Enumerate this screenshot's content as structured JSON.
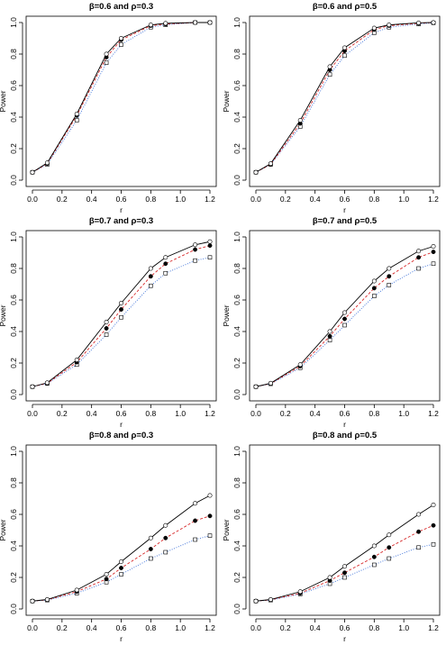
{
  "chart_data": [
    {
      "type": "line",
      "title": "β=0.6 and ρ=0.3",
      "xlabel": "r",
      "ylabel": "Power",
      "xlim": [
        0,
        1.2
      ],
      "ylim": [
        0,
        1.0
      ],
      "xticks": [
        "0.0",
        "0.2",
        "0.4",
        "0.6",
        "0.8",
        "1.0",
        "1.2"
      ],
      "yticks": [
        "0.0",
        "0.2",
        "0.4",
        "0.6",
        "0.8",
        "1.0"
      ],
      "x": [
        0.0,
        0.1,
        0.3,
        0.5,
        0.6,
        0.8,
        0.9,
        1.1,
        1.2
      ],
      "series": [
        {
          "marker": "open-circle",
          "line": "solid",
          "color": "#000000",
          "values": [
            0.05,
            0.11,
            0.42,
            0.8,
            0.9,
            0.985,
            0.995,
            1.0,
            1.0
          ]
        },
        {
          "marker": "filled-circle",
          "line": "dashed",
          "color": "#d62728",
          "values": [
            0.05,
            0.105,
            0.41,
            0.78,
            0.89,
            0.98,
            0.99,
            1.0,
            1.0
          ]
        },
        {
          "marker": "open-square",
          "line": "dotted",
          "color": "#3a6fd8",
          "values": [
            0.05,
            0.1,
            0.38,
            0.745,
            0.86,
            0.97,
            0.985,
            1.0,
            1.0
          ]
        }
      ]
    },
    {
      "type": "line",
      "title": "β=0.6 and ρ=0.5",
      "xlabel": "r",
      "ylabel": "Power",
      "xlim": [
        0,
        1.2
      ],
      "ylim": [
        0,
        1.0
      ],
      "xticks": [
        "0.0",
        "0.2",
        "0.4",
        "0.6",
        "0.8",
        "1.0",
        "1.2"
      ],
      "yticks": [
        "0.0",
        "0.2",
        "0.4",
        "0.6",
        "0.8",
        "1.0"
      ],
      "x": [
        0.0,
        0.1,
        0.3,
        0.5,
        0.6,
        0.8,
        0.9,
        1.1,
        1.2
      ],
      "series": [
        {
          "marker": "open-circle",
          "line": "solid",
          "color": "#000000",
          "values": [
            0.05,
            0.105,
            0.38,
            0.72,
            0.84,
            0.965,
            0.985,
            0.998,
            1.0
          ]
        },
        {
          "marker": "filled-circle",
          "line": "dashed",
          "color": "#d62728",
          "values": [
            0.05,
            0.1,
            0.36,
            0.7,
            0.82,
            0.955,
            0.98,
            0.995,
            1.0
          ]
        },
        {
          "marker": "open-square",
          "line": "dotted",
          "color": "#3a6fd8",
          "values": [
            0.05,
            0.1,
            0.34,
            0.67,
            0.79,
            0.935,
            0.97,
            0.99,
            0.998
          ]
        }
      ]
    },
    {
      "type": "line",
      "title": "β=0.7 and ρ=0.3",
      "xlabel": "r",
      "ylabel": "Power",
      "xlim": [
        0,
        1.2
      ],
      "ylim": [
        0,
        1.0
      ],
      "xticks": [
        "0.0",
        "0.2",
        "0.4",
        "0.6",
        "0.8",
        "1.0",
        "1.2"
      ],
      "yticks": [
        "0.0",
        "0.2",
        "0.4",
        "0.6",
        "0.8",
        "1.0"
      ],
      "x": [
        0.0,
        0.1,
        0.3,
        0.5,
        0.6,
        0.8,
        0.9,
        1.1,
        1.2
      ],
      "series": [
        {
          "marker": "open-circle",
          "line": "solid",
          "color": "#000000",
          "values": [
            0.05,
            0.075,
            0.22,
            0.46,
            0.58,
            0.8,
            0.87,
            0.95,
            0.97
          ]
        },
        {
          "marker": "filled-circle",
          "line": "dashed",
          "color": "#d62728",
          "values": [
            0.05,
            0.072,
            0.205,
            0.42,
            0.54,
            0.75,
            0.83,
            0.92,
            0.945
          ]
        },
        {
          "marker": "open-square",
          "line": "dotted",
          "color": "#3a6fd8",
          "values": [
            0.05,
            0.07,
            0.19,
            0.38,
            0.49,
            0.69,
            0.77,
            0.85,
            0.87
          ]
        }
      ]
    },
    {
      "type": "line",
      "title": "β=0.7 and ρ=0.5",
      "xlabel": "r",
      "ylabel": "Power",
      "xlim": [
        0,
        1.2
      ],
      "ylim": [
        0,
        1.0
      ],
      "xticks": [
        "0.0",
        "0.2",
        "0.4",
        "0.6",
        "0.8",
        "1.0",
        "1.2"
      ],
      "yticks": [
        "0.0",
        "0.2",
        "0.4",
        "0.6",
        "0.8",
        "1.0"
      ],
      "x": [
        0.0,
        0.1,
        0.3,
        0.5,
        0.6,
        0.8,
        0.9,
        1.1,
        1.2
      ],
      "series": [
        {
          "marker": "open-circle",
          "line": "solid",
          "color": "#000000",
          "values": [
            0.05,
            0.072,
            0.19,
            0.4,
            0.52,
            0.72,
            0.8,
            0.91,
            0.94
          ]
        },
        {
          "marker": "filled-circle",
          "line": "dashed",
          "color": "#d62728",
          "values": [
            0.05,
            0.07,
            0.18,
            0.37,
            0.48,
            0.675,
            0.75,
            0.87,
            0.905
          ]
        },
        {
          "marker": "open-square",
          "line": "dotted",
          "color": "#3a6fd8",
          "values": [
            0.05,
            0.068,
            0.17,
            0.345,
            0.44,
            0.625,
            0.695,
            0.8,
            0.83
          ]
        }
      ]
    },
    {
      "type": "line",
      "title": "β=0.8 and ρ=0.3",
      "xlabel": "r",
      "ylabel": "Power",
      "xlim": [
        0,
        1.2
      ],
      "ylim": [
        0,
        1.0
      ],
      "xticks": [
        "0.0",
        "0.2",
        "0.4",
        "0.6",
        "0.8",
        "1.0",
        "1.2"
      ],
      "yticks": [
        "0.0",
        "0.2",
        "0.4",
        "0.6",
        "0.8",
        "1.0"
      ],
      "x": [
        0.0,
        0.1,
        0.3,
        0.5,
        0.6,
        0.8,
        0.9,
        1.1,
        1.2
      ],
      "series": [
        {
          "marker": "open-circle",
          "line": "solid",
          "color": "#000000",
          "values": [
            0.05,
            0.06,
            0.12,
            0.22,
            0.3,
            0.45,
            0.53,
            0.67,
            0.72
          ]
        },
        {
          "marker": "filled-circle",
          "line": "dashed",
          "color": "#d62728",
          "values": [
            0.05,
            0.058,
            0.11,
            0.19,
            0.26,
            0.38,
            0.45,
            0.56,
            0.59
          ]
        },
        {
          "marker": "open-square",
          "line": "dotted",
          "color": "#3a6fd8",
          "values": [
            0.05,
            0.056,
            0.1,
            0.17,
            0.22,
            0.32,
            0.36,
            0.44,
            0.465
          ]
        }
      ]
    },
    {
      "type": "line",
      "title": "β=0.8 and ρ=0.5",
      "xlabel": "r",
      "ylabel": "Power",
      "xlim": [
        0,
        1.2
      ],
      "ylim": [
        0,
        1.0
      ],
      "xticks": [
        "0.0",
        "0.2",
        "0.4",
        "0.6",
        "0.8",
        "1.0",
        "1.2"
      ],
      "yticks": [
        "0.0",
        "0.2",
        "0.4",
        "0.6",
        "0.8",
        "1.0"
      ],
      "x": [
        0.0,
        0.1,
        0.3,
        0.5,
        0.6,
        0.8,
        0.9,
        1.1,
        1.2
      ],
      "series": [
        {
          "marker": "open-circle",
          "line": "solid",
          "color": "#000000",
          "values": [
            0.05,
            0.06,
            0.11,
            0.2,
            0.27,
            0.4,
            0.47,
            0.6,
            0.66
          ]
        },
        {
          "marker": "filled-circle",
          "line": "dashed",
          "color": "#d62728",
          "values": [
            0.05,
            0.058,
            0.1,
            0.18,
            0.23,
            0.33,
            0.39,
            0.49,
            0.53
          ]
        },
        {
          "marker": "open-square",
          "line": "dotted",
          "color": "#3a6fd8",
          "values": [
            0.05,
            0.056,
            0.095,
            0.16,
            0.2,
            0.28,
            0.32,
            0.39,
            0.41
          ]
        }
      ]
    }
  ]
}
